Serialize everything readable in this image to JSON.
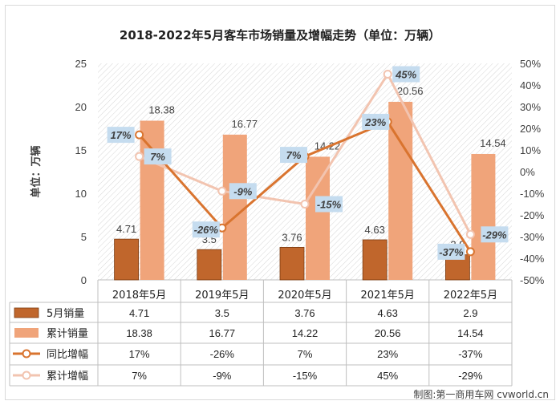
{
  "title": "2018-2022年5月客车市场销量及增幅走势（单位：万辆）",
  "credit": "制图:第一商用车网 cvworld.cn",
  "colors": {
    "monthly_bar": "#c0662c",
    "cumulative_bar": "#f0a47a",
    "yoy_line": "#d9742f",
    "cum_growth_line": "#f2c4b0",
    "label_box": "#c5dcef"
  },
  "chart_data": {
    "type": "bar",
    "title": "2018-2022年5月客车市场销量及增幅走势（单位：万辆）",
    "ylabel": "单位：万辆",
    "categories": [
      "2018年5月",
      "2019年5月",
      "2020年5月",
      "2021年5月",
      "2022年5月"
    ],
    "ylim": [
      0,
      25
    ],
    "y_ticks": [
      "0",
      "5",
      "10",
      "15",
      "20",
      "25"
    ],
    "y2lim": [
      -50,
      50
    ],
    "y2_ticks": [
      "-50%",
      "-40%",
      "-30%",
      "-20%",
      "-10%",
      "0%",
      "10%",
      "20%",
      "30%",
      "40%",
      "50%"
    ],
    "grid": false,
    "legend_position": "table-bottom",
    "series": [
      {
        "name": "5月销量",
        "kind": "bar",
        "axis": "left",
        "values": [
          4.71,
          3.5,
          3.76,
          4.63,
          2.9
        ],
        "labels": [
          "4.71",
          "3.5",
          "3.76",
          "4.63",
          "2.9"
        ],
        "cells": [
          "4.71",
          "3.5",
          "3.76",
          "4.63",
          "2.9"
        ]
      },
      {
        "name": "累计销量",
        "kind": "bar",
        "axis": "left",
        "values": [
          18.38,
          16.77,
          14.22,
          20.56,
          14.54
        ],
        "labels": [
          "18.38",
          "16.77",
          "14.22",
          "20.56",
          "14.54"
        ],
        "cells": [
          "18.38",
          "16.77",
          "14.22",
          "20.56",
          "14.54"
        ]
      },
      {
        "name": "同比增幅",
        "kind": "line",
        "axis": "right",
        "values": [
          17,
          -26,
          7,
          23,
          -37
        ],
        "labels": [
          "17%",
          "-26%",
          "7%",
          "23%",
          "-37%"
        ],
        "cells": [
          "17%",
          "-26%",
          "7%",
          "23%",
          "-37%"
        ]
      },
      {
        "name": "累计增幅",
        "kind": "line",
        "axis": "right",
        "values": [
          7,
          -9,
          -15,
          45,
          -29
        ],
        "labels": [
          "7%",
          "-9%",
          "-15%",
          "45%",
          "-29%"
        ],
        "cells": [
          "7%",
          "-9%",
          "-15%",
          "45%",
          "-29%"
        ]
      }
    ]
  }
}
